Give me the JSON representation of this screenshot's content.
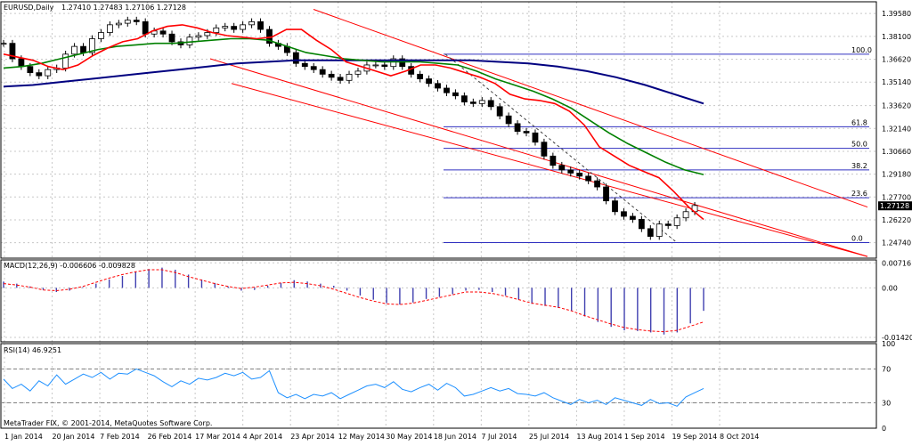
{
  "header": {
    "symbol": "EURUSD,Daily",
    "ohlc": "1.27410 1.27483 1.27106 1.27128"
  },
  "footer": {
    "copyright": "MetaTrader FIX, © 2001-2014, MetaQuotes Software Corp."
  },
  "colors": {
    "candle": "#000000",
    "grid": "#c8c8c8",
    "ma_fast": "#ff0000",
    "ma_mid": "#008000",
    "ma_slow": "#000080",
    "fibo": "#3030c0",
    "channel": "#ff0000",
    "macd_hist": "#4040b0",
    "macd_signal": "#ff0000",
    "rsi": "#1e90ff"
  },
  "chart_data": [
    {
      "type": "candlestick",
      "pane": "price",
      "title": "EURUSD,Daily",
      "ohlc_last": {
        "open": 1.2741,
        "high": 1.27483,
        "low": 1.27106,
        "close": 1.27128
      },
      "ylim": [
        1.2374,
        1.4034
      ],
      "y_ticks": [
        1.3958,
        1.381,
        1.3662,
        1.3514,
        1.3362,
        1.3214,
        1.3066,
        1.2918,
        1.277,
        1.2622,
        1.2474
      ],
      "y_tick_labels": [
        "1.39580",
        "1.38100",
        "1.36620",
        "1.35140",
        "1.33620",
        "1.32140",
        "1.30660",
        "1.29180",
        "1.27700",
        "1.26220",
        "1.24740"
      ],
      "current_price_label": "1.27128",
      "current_price": 1.27128,
      "x_labels": [
        "1 Jan 2014",
        "20 Jan 2014",
        "7 Feb 2014",
        "26 Feb 2014",
        "17 Mar 2014",
        "4 Apr 2014",
        "23 Apr 2014",
        "12 May 2014",
        "30 May 2014",
        "18 Jun 2014",
        "7 Jul 2014",
        "25 Jul 2014",
        "13 Aug 2014",
        "1 Sep 2014",
        "19 Sep 2014",
        "8 Oct 2014"
      ],
      "close_path": [
        1.3765,
        1.3665,
        1.3615,
        1.3575,
        1.3555,
        1.3595,
        1.3605,
        1.3695,
        1.3745,
        1.3705,
        1.3795,
        1.3835,
        1.3885,
        1.3895,
        1.3915,
        1.3905,
        1.3825,
        1.3845,
        1.3825,
        1.3775,
        1.3755,
        1.3805,
        1.3815,
        1.3835,
        1.3865,
        1.3875,
        1.3855,
        1.3885,
        1.3905,
        1.3855,
        1.3765,
        1.3745,
        1.3705,
        1.3635,
        1.3615,
        1.3595,
        1.3565,
        1.3545,
        1.3525,
        1.3565,
        1.3585,
        1.3625,
        1.3625,
        1.3615,
        1.3665,
        1.3615,
        1.3565,
        1.3535,
        1.3505,
        1.3475,
        1.3445,
        1.3425,
        1.3385,
        1.3375,
        1.3395,
        1.3355,
        1.3295,
        1.3245,
        1.3195,
        1.3185,
        1.3125,
        1.3035,
        1.2975,
        1.2945,
        1.2925,
        1.2905,
        1.2875,
        1.2835,
        1.2745,
        1.2675,
        1.2645,
        1.2625,
        1.2565,
        1.2515,
        1.2595,
        1.2585,
        1.2635,
        1.2675,
        1.2715
      ],
      "ma_fast": [
        1.3695,
        1.3675,
        1.3655,
        1.3615,
        1.3595,
        1.3625,
        1.3685,
        1.3735,
        1.3775,
        1.3795,
        1.3845,
        1.3875,
        1.3885,
        1.3865,
        1.3835,
        1.3815,
        1.3805,
        1.3795,
        1.3805,
        1.3855,
        1.3855,
        1.3785,
        1.3725,
        1.3645,
        1.3615,
        1.3585,
        1.3555,
        1.3585,
        1.3625,
        1.3625,
        1.3605,
        1.3575,
        1.3545,
        1.3505,
        1.3435,
        1.3405,
        1.3395,
        1.3375,
        1.3325,
        1.3235,
        1.3095,
        1.3035,
        1.2975,
        1.2935,
        1.2895,
        1.2805,
        1.2705,
        1.2625
      ],
      "ma_mid": [
        1.3605,
        1.3615,
        1.3635,
        1.3665,
        1.3695,
        1.3725,
        1.3745,
        1.3755,
        1.3765,
        1.3765,
        1.3775,
        1.3785,
        1.3795,
        1.3795,
        1.3785,
        1.3745,
        1.3705,
        1.3685,
        1.3665,
        1.3655,
        1.3645,
        1.3645,
        1.3645,
        1.3635,
        1.3625,
        1.3585,
        1.3535,
        1.3495,
        1.3455,
        1.3405,
        1.3345,
        1.3265,
        1.3185,
        1.3115,
        1.3055,
        1.2995,
        1.2945,
        1.2915
      ],
      "ma_slow": [
        1.3485,
        1.3495,
        1.3515,
        1.3535,
        1.3555,
        1.3575,
        1.3595,
        1.3615,
        1.3635,
        1.3645,
        1.3655,
        1.3655,
        1.3655,
        1.3655,
        1.3655,
        1.3655,
        1.3655,
        1.3645,
        1.3635,
        1.3615,
        1.3585,
        1.3545,
        1.3495,
        1.3435,
        1.3375
      ],
      "fibonacci": [
        {
          "label": "100.0",
          "price": 1.3695
        },
        {
          "label": "61.8",
          "price": 1.3225
        },
        {
          "label": "50.0",
          "price": 1.3085
        },
        {
          "label": "38.2",
          "price": 1.2945
        },
        {
          "label": "23.6",
          "price": 1.2765
        },
        {
          "label": "0.0",
          "price": 1.2475
        }
      ],
      "channel": [
        {
          "from": [
            1.3985
          ],
          "to": [
            1.2705
          ]
        },
        {
          "from": [
            1.3665
          ],
          "to": [
            1.2385
          ]
        },
        {
          "from": [
            1.3505
          ],
          "to": [
            1.2385
          ]
        }
      ],
      "grid": true
    },
    {
      "type": "histogram",
      "pane": "macd",
      "title": "MACD(12,26,9) -0.006606 -0.009828",
      "ylim": [
        -0.0155,
        0.008
      ],
      "y_tick_labels": [
        "0.007161",
        "0.00",
        "-0.014207"
      ],
      "y_ticks": [
        0.007161,
        0,
        -0.014207
      ],
      "values": [
        0.0018,
        0.0012,
        0.0004,
        -0.0006,
        -0.0012,
        -0.0008,
        0.0002,
        0.0012,
        0.0024,
        0.0034,
        0.0046,
        0.0054,
        0.0058,
        0.0052,
        0.0038,
        0.0024,
        0.0014,
        0.0004,
        -0.0008,
        -0.0006,
        0.0006,
        0.0014,
        0.0022,
        0.0018,
        0.0012,
        0.0006,
        -0.0008,
        -0.0022,
        -0.0034,
        -0.0044,
        -0.0048,
        -0.0042,
        -0.0032,
        -0.0026,
        -0.0018,
        -0.0008,
        -0.0006,
        -0.0012,
        -0.0022,
        -0.0034,
        -0.0046,
        -0.0052,
        -0.0058,
        -0.0066,
        -0.0082,
        -0.0098,
        -0.0112,
        -0.0122,
        -0.0124,
        -0.0128,
        -0.0134,
        -0.0128,
        -0.0102,
        -0.0066
      ],
      "signal": [
        0.0012,
        0.0008,
        0.0002,
        -0.0006,
        -0.0008,
        -0.0004,
        0.0004,
        0.0016,
        0.0028,
        0.0038,
        0.0046,
        0.0052,
        0.0052,
        0.0044,
        0.0032,
        0.0022,
        0.0012,
        0.0004,
        -0.0002,
        0.0002,
        0.0008,
        0.0014,
        0.0016,
        0.0012,
        0.0006,
        -0.0004,
        -0.0016,
        -0.0028,
        -0.0038,
        -0.0046,
        -0.0048,
        -0.0044,
        -0.0036,
        -0.0028,
        -0.002,
        -0.0012,
        -0.0012,
        -0.0016,
        -0.0024,
        -0.0034,
        -0.0044,
        -0.005,
        -0.0056,
        -0.0066,
        -0.008,
        -0.0092,
        -0.0104,
        -0.0114,
        -0.012,
        -0.0124,
        -0.0126,
        -0.0122,
        -0.011,
        -0.0098
      ],
      "grid": true
    },
    {
      "type": "line",
      "pane": "rsi",
      "title": "RSI(14) 46.9251",
      "ylim": [
        0,
        100
      ],
      "y_ticks": [
        100,
        70,
        30,
        0
      ],
      "y_tick_labels": [
        "100",
        "70",
        "30",
        "0"
      ],
      "values": [
        58,
        47,
        52,
        44,
        56,
        50,
        63,
        52,
        58,
        64,
        60,
        66,
        58,
        65,
        64,
        70,
        66,
        62,
        55,
        49,
        56,
        52,
        59,
        57,
        60,
        65,
        62,
        66,
        58,
        60,
        68,
        42,
        36,
        40,
        35,
        40,
        38,
        42,
        35,
        40,
        45,
        50,
        52,
        48,
        55,
        46,
        43,
        48,
        52,
        45,
        53,
        48,
        38,
        40,
        44,
        48,
        44,
        47,
        41,
        40,
        38,
        42,
        36,
        32,
        28,
        34,
        30,
        33,
        28,
        36,
        33,
        30,
        27,
        34,
        29,
        30,
        26,
        37,
        42,
        47
      ],
      "grid": true
    }
  ]
}
